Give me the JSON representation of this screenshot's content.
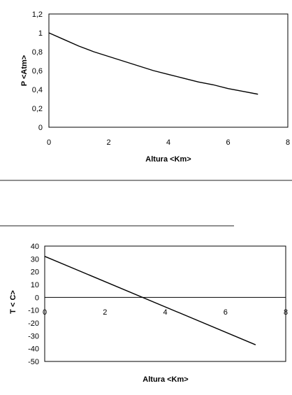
{
  "chart_data": [
    {
      "type": "line",
      "xlabel": "Altura <Km>",
      "ylabel": "P <Atm>",
      "xlim": [
        0,
        8
      ],
      "ylim": [
        0,
        1.2
      ],
      "x_ticks": [
        "0",
        "2",
        "4",
        "6",
        "8"
      ],
      "y_ticks": [
        "0",
        "0,2",
        "0,4",
        "0,6",
        "0,8",
        "1",
        "1,2"
      ],
      "grid": false,
      "x": [
        0,
        0.5,
        1,
        1.5,
        2,
        2.5,
        3,
        3.5,
        4,
        4.5,
        5,
        5.5,
        6,
        6.5,
        7
      ],
      "series": [
        {
          "values": [
            1.0,
            0.93,
            0.86,
            0.8,
            0.75,
            0.7,
            0.65,
            0.6,
            0.56,
            0.52,
            0.48,
            0.45,
            0.41,
            0.38,
            0.35
          ]
        }
      ]
    },
    {
      "type": "line",
      "xlabel": "Altura <Km>",
      "ylabel": "T < C>",
      "xlim": [
        0,
        8
      ],
      "ylim": [
        -50,
        40
      ],
      "x_ticks": [
        "0",
        "2",
        "4",
        "6",
        "8"
      ],
      "y_ticks": [
        "40",
        "30",
        "20",
        "10",
        "0",
        "-10",
        "-20",
        "-30",
        "-40",
        "-50"
      ],
      "grid": false,
      "x": [
        0,
        7
      ],
      "series": [
        {
          "values": [
            32,
            -37
          ]
        }
      ]
    }
  ]
}
